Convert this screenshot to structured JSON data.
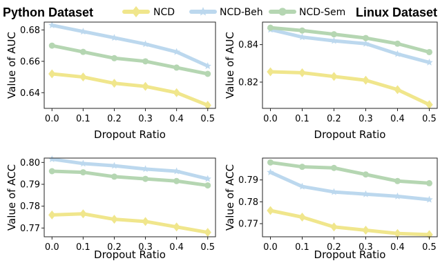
{
  "headers": {
    "left": "Python Dataset",
    "right": "Linux Dataset"
  },
  "legend": [
    {
      "name": "NCD",
      "color": "#f0e68c",
      "marker": "diamond"
    },
    {
      "name": "NCD-Beh",
      "color": "#bcd8ee",
      "marker": "star"
    },
    {
      "name": "NCD-Sem",
      "color": "#b5d6b2",
      "marker": "circle"
    }
  ],
  "chart_data": [
    {
      "type": "line",
      "panel": "python-auc",
      "dataset": "Python Dataset",
      "xlabel": "Dropout Ratio",
      "ylabel": "Value of AUC",
      "x": [
        0.0,
        0.1,
        0.2,
        0.3,
        0.4,
        0.5
      ],
      "xticks": [
        "0.0",
        "0.1",
        "0.2",
        "0.3",
        "0.4",
        "0.5"
      ],
      "ylim": [
        0.63,
        0.685
      ],
      "yticks": [
        0.64,
        0.66,
        0.68
      ],
      "ytick_labels": [
        "0.64",
        "0.66",
        "0.68"
      ],
      "series": [
        {
          "name": "NCD",
          "values": [
            0.652,
            0.65,
            0.646,
            0.644,
            0.64,
            0.632
          ]
        },
        {
          "name": "NCD-Beh",
          "values": [
            0.683,
            0.679,
            0.675,
            0.671,
            0.666,
            0.657
          ]
        },
        {
          "name": "NCD-Sem",
          "values": [
            0.67,
            0.666,
            0.662,
            0.66,
            0.656,
            0.652
          ]
        }
      ]
    },
    {
      "type": "line",
      "panel": "linux-auc",
      "dataset": "Linux Dataset",
      "xlabel": "Dropout Ratio",
      "ylabel": "Value of AUC",
      "x": [
        0.0,
        0.1,
        0.2,
        0.3,
        0.4,
        0.5
      ],
      "xticks": [
        "0.0",
        "0.1",
        "0.2",
        "0.3",
        "0.4",
        "0.5"
      ],
      "ylim": [
        0.806,
        0.852
      ],
      "yticks": [
        0.82,
        0.84
      ],
      "ytick_labels": [
        "0.82",
        "0.84"
      ],
      "series": [
        {
          "name": "NCD",
          "values": [
            0.8255,
            0.825,
            0.823,
            0.821,
            0.816,
            0.808
          ]
        },
        {
          "name": "NCD-Beh",
          "values": [
            0.848,
            0.844,
            0.842,
            0.8405,
            0.835,
            0.8305
          ]
        },
        {
          "name": "NCD-Sem",
          "values": [
            0.849,
            0.8475,
            0.8455,
            0.8435,
            0.8405,
            0.836
          ]
        }
      ]
    },
    {
      "type": "line",
      "panel": "python-acc",
      "dataset": "Python Dataset",
      "xlabel": "Dropout Ratio",
      "ylabel": "Value of ACC",
      "x": [
        0.0,
        0.1,
        0.2,
        0.3,
        0.4,
        0.5
      ],
      "xticks": [
        "0.0",
        "0.1",
        "0.2",
        "0.3",
        "0.4",
        "0.5"
      ],
      "ylim": [
        0.766,
        0.802
      ],
      "yticks": [
        0.77,
        0.78,
        0.79,
        0.8
      ],
      "ytick_labels": [
        "0.77",
        "0.78",
        "0.79",
        "0.80"
      ],
      "series": [
        {
          "name": "NCD",
          "values": [
            0.776,
            0.7765,
            0.774,
            0.773,
            0.7705,
            0.768
          ]
        },
        {
          "name": "NCD-Beh",
          "values": [
            0.8015,
            0.7995,
            0.7985,
            0.797,
            0.796,
            0.7925
          ]
        },
        {
          "name": "NCD-Sem",
          "values": [
            0.796,
            0.7955,
            0.7935,
            0.7925,
            0.7915,
            0.7895
          ]
        }
      ]
    },
    {
      "type": "line",
      "panel": "linux-acc",
      "dataset": "Linux Dataset",
      "xlabel": "Dropout Ratio",
      "ylabel": "Value of ACC",
      "x": [
        0.0,
        0.1,
        0.2,
        0.3,
        0.4,
        0.5
      ],
      "xticks": [
        "0.0",
        "0.1",
        "0.2",
        "0.3",
        "0.4",
        "0.5"
      ],
      "ylim": [
        0.764,
        0.8
      ],
      "yticks": [
        0.77,
        0.78,
        0.79
      ],
      "ytick_labels": [
        "0.77",
        "0.78",
        "0.79"
      ],
      "series": [
        {
          "name": "NCD",
          "values": [
            0.776,
            0.773,
            0.7685,
            0.767,
            0.7655,
            0.765
          ]
        },
        {
          "name": "NCD-Beh",
          "values": [
            0.7935,
            0.787,
            0.7845,
            0.7835,
            0.7825,
            0.781
          ]
        },
        {
          "name": "NCD-Sem",
          "values": [
            0.798,
            0.796,
            0.7955,
            0.7925,
            0.7895,
            0.7885
          ]
        }
      ]
    }
  ]
}
